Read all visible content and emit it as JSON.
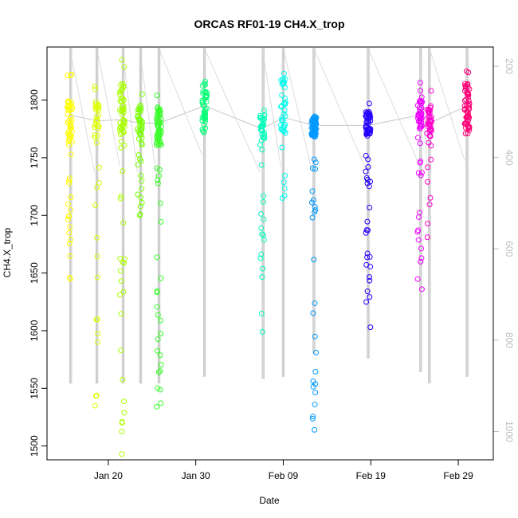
{
  "chart_data": {
    "type": "scatter",
    "title": "ORCAS RF01-19 CH4.X_trop",
    "xlabel": "Date",
    "ylabel": "CH4.X_trop",
    "xlim": [
      "2016-01-13",
      "2016-03-04"
    ],
    "ylim": [
      1488,
      1846
    ],
    "x_ticks": [
      {
        "label": "Jan 20",
        "date": "2016-01-20"
      },
      {
        "label": "Jan 30",
        "date": "2016-01-30"
      },
      {
        "label": "Feb 09",
        "date": "2016-02-09"
      },
      {
        "label": "Feb 19",
        "date": "2016-02-19"
      },
      {
        "label": "Feb 29",
        "date": "2016-02-29"
      }
    ],
    "y_ticks": [
      "1500",
      "1550",
      "1600",
      "1650",
      "1700",
      "1750",
      "1800"
    ],
    "y2_ticks": [
      "200",
      "400",
      "600",
      "800",
      "1000"
    ],
    "y2lim": [
      1062,
      158
    ],
    "grid": false,
    "marker": "open-circle",
    "flights": [
      {
        "date": "2016-01-15.6",
        "color": "#ffff00",
        "min": 1645,
        "max": 1822,
        "mid": 1787,
        "bulk": [
          1760,
          1800
        ],
        "n": 60
      },
      {
        "date": "2016-01-18.7",
        "color": "#ddff00",
        "min": 1535,
        "max": 1812,
        "mid": 1782,
        "bulk": [
          1765,
          1798
        ],
        "n": 40
      },
      {
        "date": "2016-01-21.6",
        "color": "#aaff00",
        "min": 1493,
        "max": 1835,
        "mid": 1783,
        "bulk": [
          1770,
          1815
        ],
        "n": 65
      },
      {
        "date": "2016-01-23.6",
        "color": "#77ff00",
        "min": 1700,
        "max": 1805,
        "mid": 1780,
        "bulk": [
          1765,
          1795
        ],
        "n": 45
      },
      {
        "date": "2016-01-25.8",
        "color": "#33ff22",
        "min": 1534,
        "max": 1804,
        "mid": 1780,
        "bulk": [
          1760,
          1795
        ],
        "n": 70
      },
      {
        "date": "2016-01-31.0",
        "color": "#00ff77",
        "min": 1772,
        "max": 1816,
        "mid": 1795,
        "bulk": [
          1780,
          1810
        ],
        "n": 40
      },
      {
        "date": "2016-02-06.6",
        "color": "#00ffbb",
        "min": 1599,
        "max": 1791,
        "mid": 1775,
        "bulk": [
          1765,
          1788
        ],
        "n": 45
      },
      {
        "date": "2016-02-09.0",
        "color": "#00ffee",
        "min": 1715,
        "max": 1823,
        "mid": 1785,
        "bulk": [
          1770,
          1820
        ],
        "n": 40
      },
      {
        "date": "2016-02-12.5",
        "color": "#0099ff",
        "min": 1514,
        "max": 1786,
        "mid": 1778,
        "bulk": [
          1768,
          1785
        ],
        "n": 80
      },
      {
        "date": "2016-02-18.7",
        "color": "#2200ff",
        "min": 1603,
        "max": 1797,
        "mid": 1778,
        "bulk": [
          1768,
          1790
        ],
        "n": 70
      },
      {
        "date": "2016-02-24.6",
        "color": "#ee00ff",
        "min": 1636,
        "max": 1815,
        "mid": 1787,
        "bulk": [
          1775,
          1800
        ],
        "n": 55
      },
      {
        "date": "2016-02-25.7",
        "color": "#ff00cc",
        "min": 1681,
        "max": 1808,
        "mid": 1780,
        "bulk": [
          1768,
          1795
        ],
        "n": 45
      },
      {
        "date": "2016-03-01.0",
        "color": "#ff0077",
        "min": 1771,
        "max": 1825,
        "mid": 1795,
        "bulk": [
          1775,
          1815
        ],
        "n": 55
      }
    ],
    "trace_lines": [
      {
        "date": "2016-01-15.7",
        "p_top": 160,
        "p_bottom": 895
      },
      {
        "date": "2016-01-18.7",
        "p_top": 160,
        "p_bottom": 895
      },
      {
        "date": "2016-01-21.7",
        "p_top": 160,
        "p_bottom": 895
      },
      {
        "date": "2016-01-23.7",
        "p_top": 160,
        "p_bottom": 895
      },
      {
        "date": "2016-01-25.8",
        "p_top": 160,
        "p_bottom": 895
      },
      {
        "date": "2016-01-31.0",
        "p_top": 160,
        "p_bottom": 880
      },
      {
        "date": "2016-02-06.7",
        "p_top": 160,
        "p_bottom": 885
      },
      {
        "date": "2016-02-09.0",
        "p_top": 160,
        "p_bottom": 880
      },
      {
        "date": "2016-02-12.5",
        "p_top": 160,
        "p_bottom": 830
      },
      {
        "date": "2016-02-18.7",
        "p_top": 160,
        "p_bottom": 840
      },
      {
        "date": "2016-02-24.7",
        "p_top": 160,
        "p_bottom": 870
      },
      {
        "date": "2016-02-25.7",
        "p_top": 160,
        "p_bottom": 895
      },
      {
        "date": "2016-03-01.0",
        "p_top": 160,
        "p_bottom": 880
      }
    ]
  }
}
